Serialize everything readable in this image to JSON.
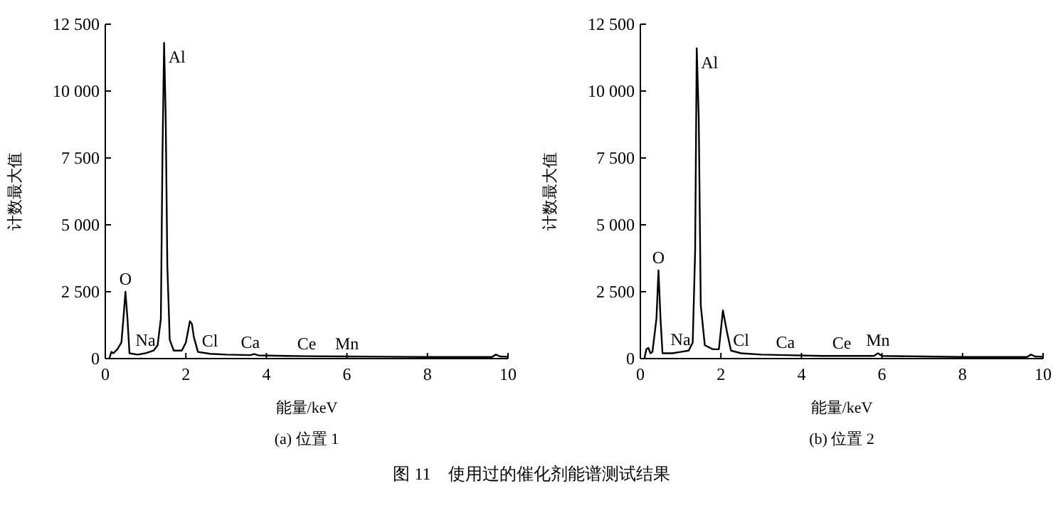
{
  "chart_data": [
    {
      "type": "line",
      "title": "(a) 位置 1",
      "xlabel": "能量/keV",
      "ylabel": "计数最大值",
      "xlim": [
        0,
        10
      ],
      "ylim": [
        0,
        12500
      ],
      "xticks": [
        0,
        2,
        4,
        6,
        8,
        10
      ],
      "yticks": [
        0,
        {
          "value": 2500,
          "label": "2 500"
        },
        {
          "value": 5000,
          "label": "5 000"
        },
        {
          "value": 7500,
          "label": "7 500"
        },
        {
          "value": 10000,
          "label": "10 000"
        },
        {
          "value": 12500,
          "label": "12 500"
        }
      ],
      "series": [
        {
          "color": "#000000",
          "x": [
            0.1,
            0.15,
            0.2,
            0.3,
            0.4,
            0.45,
            0.5,
            0.55,
            0.6,
            0.8,
            1.0,
            1.1,
            1.2,
            1.3,
            1.38,
            1.42,
            1.46,
            1.5,
            1.54,
            1.6,
            1.7,
            1.9,
            2.0,
            2.1,
            2.15,
            2.2,
            2.3,
            2.6,
            3.0,
            3.6,
            3.7,
            3.8,
            4.5,
            5.0,
            6.0,
            7.0,
            8.0,
            9.0,
            9.6,
            9.7,
            9.8,
            10.0
          ],
          "values": [
            0,
            250,
            200,
            350,
            600,
            1500,
            2500,
            1500,
            200,
            150,
            200,
            250,
            300,
            500,
            1500,
            7700,
            11800,
            9000,
            3500,
            700,
            300,
            300,
            600,
            1400,
            1300,
            800,
            250,
            180,
            150,
            130,
            170,
            120,
            100,
            90,
            80,
            70,
            60,
            60,
            60,
            150,
            80,
            70
          ]
        }
      ],
      "annotations": [
        {
          "text": "O",
          "x": 0.5,
          "y": 2500
        },
        {
          "text": "Al",
          "x": 1.46,
          "y": 11800
        },
        {
          "text": "Na",
          "x": 1.0,
          "y": 200
        },
        {
          "text": "Cl",
          "x": 2.6,
          "y": 180
        },
        {
          "text": "Ca",
          "x": 3.6,
          "y": 130
        },
        {
          "text": "Ce",
          "x": 5.0,
          "y": 90
        },
        {
          "text": "Mn",
          "x": 6.0,
          "y": 80
        }
      ]
    },
    {
      "type": "line",
      "title": "(b) 位置 2",
      "xlabel": "能量/keV",
      "ylabel": "计数最大值",
      "xlim": [
        0,
        10
      ],
      "ylim": [
        0,
        12500
      ],
      "xticks": [
        0,
        2,
        4,
        6,
        8,
        10
      ],
      "yticks": [
        0,
        {
          "value": 2500,
          "label": "2 500"
        },
        {
          "value": 5000,
          "label": "5 000"
        },
        {
          "value": 7500,
          "label": "7 500"
        },
        {
          "value": 10000,
          "label": "10 000"
        },
        {
          "value": 12500,
          "label": "12 500"
        }
      ],
      "series": [
        {
          "color": "#000000",
          "x": [
            0.1,
            0.15,
            0.2,
            0.25,
            0.3,
            0.4,
            0.45,
            0.5,
            0.55,
            0.8,
            1.0,
            1.2,
            1.3,
            1.36,
            1.4,
            1.45,
            1.5,
            1.6,
            1.8,
            1.95,
            2.05,
            2.15,
            2.25,
            2.5,
            3.0,
            3.6,
            4.5,
            5.0,
            5.8,
            5.9,
            6.0,
            7.0,
            8.0,
            9.6,
            9.7,
            9.8,
            10.0
          ],
          "values": [
            0,
            350,
            400,
            200,
            250,
            1500,
            3300,
            1500,
            200,
            200,
            250,
            300,
            600,
            4000,
            11600,
            9000,
            2000,
            500,
            350,
            350,
            1800,
            1000,
            300,
            200,
            150,
            130,
            100,
            100,
            100,
            200,
            100,
            80,
            60,
            60,
            150,
            80,
            70
          ]
        }
      ],
      "annotations": [
        {
          "text": "O",
          "x": 0.45,
          "y": 3300
        },
        {
          "text": "Al",
          "x": 1.4,
          "y": 11600
        },
        {
          "text": "Na",
          "x": 1.0,
          "y": 250
        },
        {
          "text": "Cl",
          "x": 2.5,
          "y": 200
        },
        {
          "text": "Ca",
          "x": 3.6,
          "y": 130
        },
        {
          "text": "Ce",
          "x": 5.0,
          "y": 100
        },
        {
          "text": "Mn",
          "x": 5.9,
          "y": 200
        },
        "图 11　使用过的催化剂能谱测试结果"
      ]
    }
  ]
}
